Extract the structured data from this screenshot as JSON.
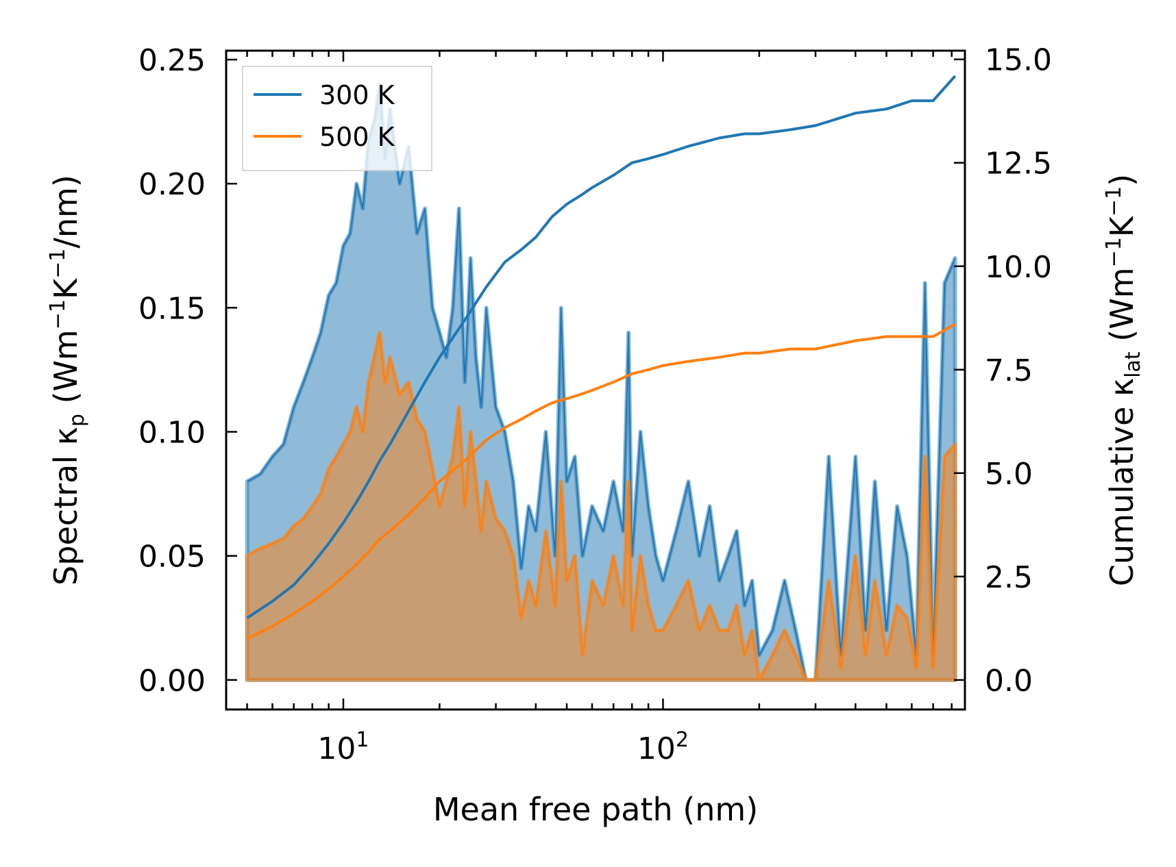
{
  "chart_data": {
    "type": "line",
    "xscale": "log",
    "xlim": [
      4.3,
      880
    ],
    "ylim_left": [
      -0.0119,
      0.2536
    ],
    "ylim_right": [
      -0.713,
      15.21
    ],
    "xlabel": "Mean free path (nm)",
    "ylabel_left": {
      "prefix": "Spectral κ",
      "sub": "p",
      "suffix": " (Wm",
      "sup1": "−1",
      "mid": "K",
      "sup2": "−1",
      "end": "/nm)"
    },
    "ylabel_right": {
      "prefix": "Cumulative κ",
      "sub": "lat",
      "suffix": " (Wm",
      "sup1": "−1",
      "mid": "K",
      "sup2": "−1",
      "end": ")"
    },
    "x_ticks": [
      {
        "value": 10,
        "base": "10",
        "exp": "1"
      },
      {
        "value": 100,
        "base": "10",
        "exp": "2"
      }
    ],
    "y_ticks_left": [
      {
        "value": 0,
        "label": "0.00"
      },
      {
        "value": 0.05,
        "label": "0.05"
      },
      {
        "value": 0.1,
        "label": "0.10"
      },
      {
        "value": 0.15,
        "label": "0.15"
      },
      {
        "value": 0.2,
        "label": "0.20"
      },
      {
        "value": 0.25,
        "label": "0.25"
      }
    ],
    "y_ticks_right": [
      {
        "value": 0,
        "label": "0.0"
      },
      {
        "value": 2.5,
        "label": "2.5"
      },
      {
        "value": 5,
        "label": "5.0"
      },
      {
        "value": 7.5,
        "label": "7.5"
      },
      {
        "value": 10,
        "label": "10.0"
      },
      {
        "value": 12.5,
        "label": "12.5"
      },
      {
        "value": 15,
        "label": "15.0"
      }
    ],
    "legend": {
      "location": "upper-left",
      "entries": [
        "300 K",
        "500 K"
      ]
    },
    "colors": {
      "series_300": "#1f77b4",
      "series_500": "#ff7f0e"
    },
    "spectral": [
      {
        "name": "300 K",
        "mfp": [
          5.0,
          5.5,
          6.0,
          6.5,
          7.0,
          7.5,
          8.0,
          8.5,
          9.0,
          9.5,
          10.0,
          10.5,
          11.0,
          11.5,
          12.0,
          12.5,
          13.0,
          13.5,
          14.0,
          15.0,
          16.0,
          17.0,
          18.0,
          19.0,
          20.0,
          21.0,
          22.0,
          23.0,
          24.0,
          25.0,
          26.0,
          27.0,
          28.0,
          30.0,
          32.0,
          34.0,
          36.0,
          38.0,
          40.0,
          43.0,
          46.0,
          48.0,
          50.0,
          53.0,
          56.0,
          60.0,
          65.0,
          70.0,
          75.0,
          78.0,
          80.0,
          85.0,
          90.0,
          95.0,
          100.0,
          110.0,
          120.0,
          130.0,
          140.0,
          150.0,
          160.0,
          170.0,
          180.0,
          190.0,
          200.0,
          220.0,
          240.0,
          260.0,
          280.0,
          300.0,
          330.0,
          360.0,
          400.0,
          430.0,
          460.0,
          500.0,
          540.0,
          580.0,
          620.0,
          660.0,
          700.0,
          760.0,
          820.0
        ],
        "value": [
          0.08,
          0.083,
          0.09,
          0.095,
          0.11,
          0.12,
          0.13,
          0.14,
          0.155,
          0.16,
          0.175,
          0.18,
          0.2,
          0.19,
          0.218,
          0.225,
          0.24,
          0.21,
          0.23,
          0.2,
          0.215,
          0.18,
          0.19,
          0.15,
          0.14,
          0.13,
          0.15,
          0.19,
          0.12,
          0.17,
          0.13,
          0.11,
          0.15,
          0.11,
          0.1,
          0.08,
          0.045,
          0.07,
          0.06,
          0.1,
          0.05,
          0.15,
          0.08,
          0.09,
          0.05,
          0.07,
          0.06,
          0.08,
          0.06,
          0.14,
          0.05,
          0.1,
          0.07,
          0.05,
          0.04,
          0.06,
          0.08,
          0.05,
          0.07,
          0.04,
          0.05,
          0.06,
          0.03,
          0.04,
          0.01,
          0.02,
          0.04,
          0.02,
          0.0,
          0.0,
          0.09,
          0.01,
          0.09,
          0.02,
          0.08,
          0.02,
          0.07,
          0.05,
          0.01,
          0.16,
          0.01,
          0.16,
          0.17
        ]
      },
      {
        "name": "500 K",
        "mfp": [
          5.0,
          5.5,
          6.0,
          6.5,
          7.0,
          7.5,
          8.0,
          8.5,
          9.0,
          9.5,
          10.0,
          10.5,
          11.0,
          11.5,
          12.0,
          12.5,
          13.0,
          13.5,
          14.0,
          15.0,
          16.0,
          17.0,
          18.0,
          19.0,
          20.0,
          21.0,
          22.0,
          23.0,
          24.0,
          25.0,
          26.0,
          27.0,
          28.0,
          30.0,
          32.0,
          34.0,
          36.0,
          38.0,
          40.0,
          43.0,
          46.0,
          48.0,
          50.0,
          53.0,
          56.0,
          60.0,
          65.0,
          70.0,
          75.0,
          78.0,
          80.0,
          85.0,
          90.0,
          95.0,
          100.0,
          110.0,
          120.0,
          130.0,
          140.0,
          150.0,
          160.0,
          170.0,
          180.0,
          190.0,
          200.0,
          220.0,
          240.0,
          260.0,
          280.0,
          300.0,
          330.0,
          360.0,
          400.0,
          430.0,
          460.0,
          500.0,
          540.0,
          580.0,
          620.0,
          660.0,
          700.0,
          760.0,
          820.0
        ],
        "value": [
          0.05,
          0.053,
          0.055,
          0.057,
          0.062,
          0.065,
          0.07,
          0.075,
          0.085,
          0.09,
          0.095,
          0.1,
          0.11,
          0.1,
          0.12,
          0.13,
          0.14,
          0.12,
          0.13,
          0.115,
          0.12,
          0.105,
          0.1,
          0.085,
          0.07,
          0.08,
          0.09,
          0.11,
          0.07,
          0.1,
          0.08,
          0.06,
          0.08,
          0.065,
          0.06,
          0.05,
          0.025,
          0.04,
          0.03,
          0.06,
          0.03,
          0.08,
          0.04,
          0.05,
          0.01,
          0.04,
          0.03,
          0.05,
          0.03,
          0.08,
          0.02,
          0.05,
          0.03,
          0.02,
          0.02,
          0.03,
          0.04,
          0.02,
          0.03,
          0.02,
          0.02,
          0.03,
          0.01,
          0.02,
          0.0,
          0.01,
          0.02,
          0.01,
          0.0,
          0.0,
          0.04,
          0.005,
          0.05,
          0.01,
          0.04,
          0.01,
          0.03,
          0.025,
          0.005,
          0.09,
          0.005,
          0.09,
          0.095
        ]
      }
    ],
    "cumulative": [
      {
        "name": "300 K",
        "mfp": [
          5.0,
          6.0,
          7.0,
          8.0,
          9.0,
          10.0,
          11.0,
          12.0,
          13.0,
          14.0,
          16.0,
          18.0,
          20.0,
          24.0,
          28.0,
          32.0,
          36.0,
          40.0,
          45.0,
          50.0,
          55.0,
          60.0,
          70.0,
          80.0,
          90.0,
          100.0,
          120.0,
          150.0,
          180.0,
          200.0,
          250.0,
          300.0,
          400.0,
          500.0,
          600.0,
          700.0,
          820.0
        ],
        "value": [
          1.5,
          1.9,
          2.3,
          2.8,
          3.3,
          3.8,
          4.3,
          4.8,
          5.3,
          5.7,
          6.5,
          7.2,
          7.8,
          8.7,
          9.5,
          10.1,
          10.4,
          10.7,
          11.2,
          11.5,
          11.7,
          11.9,
          12.2,
          12.5,
          12.6,
          12.7,
          12.9,
          13.1,
          13.2,
          13.2,
          13.3,
          13.4,
          13.7,
          13.8,
          14.0,
          14.0,
          14.6
        ]
      },
      {
        "name": "500 K",
        "mfp": [
          5.0,
          6.0,
          7.0,
          8.0,
          9.0,
          10.0,
          11.0,
          12.0,
          13.0,
          14.0,
          16.0,
          18.0,
          20.0,
          24.0,
          28.0,
          32.0,
          36.0,
          40.0,
          45.0,
          50.0,
          55.0,
          60.0,
          70.0,
          80.0,
          90.0,
          100.0,
          120.0,
          150.0,
          180.0,
          200.0,
          250.0,
          300.0,
          400.0,
          500.0,
          600.0,
          700.0,
          820.0
        ],
        "value": [
          1.0,
          1.3,
          1.6,
          1.9,
          2.2,
          2.5,
          2.8,
          3.1,
          3.4,
          3.6,
          4.0,
          4.4,
          4.8,
          5.3,
          5.8,
          6.1,
          6.3,
          6.5,
          6.7,
          6.8,
          6.9,
          7.0,
          7.2,
          7.4,
          7.5,
          7.6,
          7.7,
          7.8,
          7.9,
          7.9,
          8.0,
          8.0,
          8.2,
          8.3,
          8.3,
          8.3,
          8.6
        ]
      }
    ]
  }
}
